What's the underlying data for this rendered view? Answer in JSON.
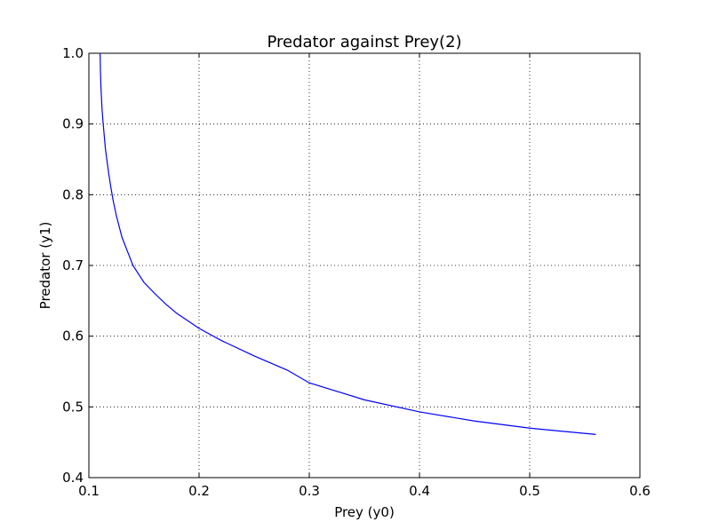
{
  "chart_data": {
    "type": "line",
    "title": "Predator against Prey(2)",
    "xlabel": "Prey (y0)",
    "ylabel": "Predator (y1)",
    "xlim": [
      0.1,
      0.6
    ],
    "ylim": [
      0.4,
      1.0
    ],
    "xticks": [
      "0.1",
      "0.2",
      "0.3",
      "0.4",
      "0.5",
      "0.6"
    ],
    "yticks": [
      "0.4",
      "0.5",
      "0.6",
      "0.7",
      "0.8",
      "0.9",
      "1.0"
    ],
    "grid": true,
    "series": [
      {
        "color": "#0000ff",
        "x": [
          0.1102,
          0.1105,
          0.111,
          0.112,
          0.113,
          0.115,
          0.118,
          0.12,
          0.122,
          0.125,
          0.13,
          0.135,
          0.14,
          0.15,
          0.16,
          0.17,
          0.18,
          0.2,
          0.22,
          0.25,
          0.28,
          0.3,
          0.35,
          0.4,
          0.45,
          0.5,
          0.56
        ],
        "y": [
          1.0,
          0.975,
          0.95,
          0.92,
          0.9,
          0.865,
          0.83,
          0.81,
          0.792,
          0.77,
          0.74,
          0.72,
          0.7,
          0.676,
          0.66,
          0.645,
          0.632,
          0.611,
          0.594,
          0.572,
          0.552,
          0.534,
          0.51,
          0.493,
          0.48,
          0.47,
          0.461
        ]
      }
    ]
  }
}
